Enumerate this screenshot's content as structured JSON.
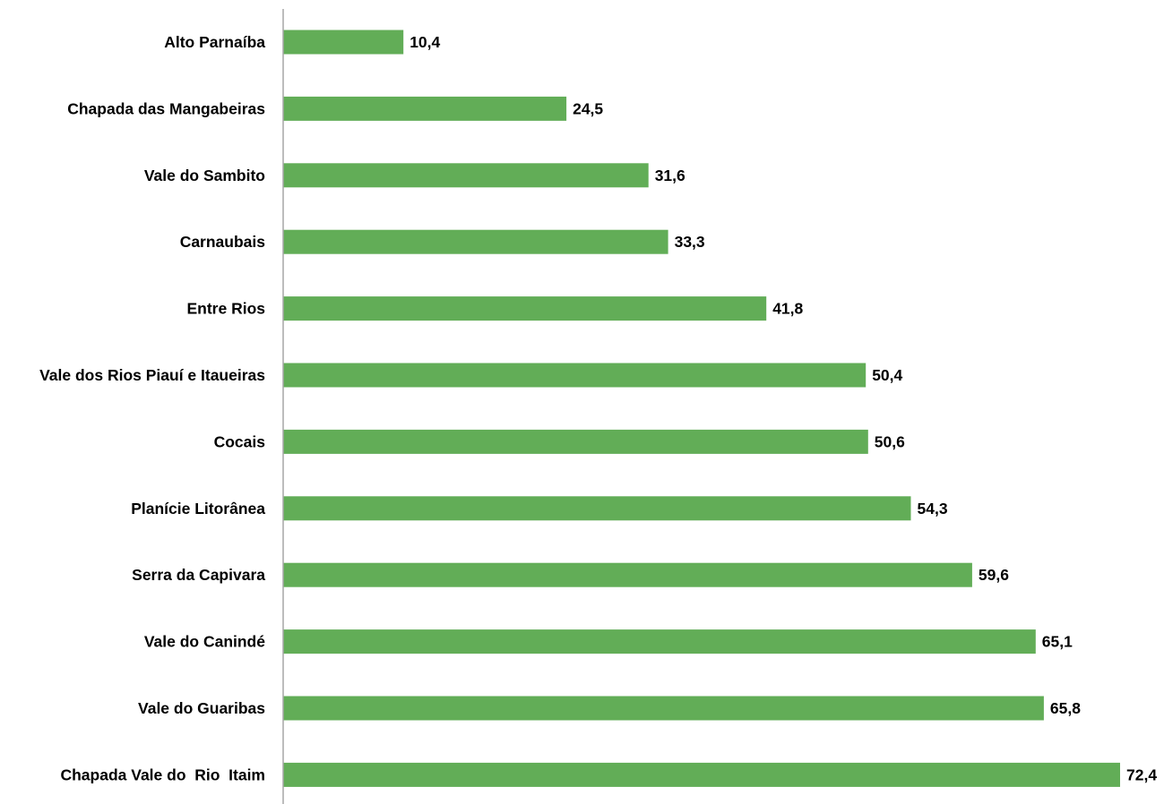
{
  "chart_data": {
    "type": "bar",
    "orientation": "horizontal",
    "categories": [
      "Alto Parnaíba",
      "Chapada das Mangabeiras",
      "Vale do Sambito",
      "Carnaubais",
      "Entre Rios",
      "Vale dos Rios Piauí e Itaueiras",
      "Cocais",
      "Planície Litorânea",
      "Serra da Capivara",
      "Vale do Canindé",
      "Vale do Guaribas",
      "Chapada Vale do  Rio  Itaim"
    ],
    "values": [
      10.4,
      24.5,
      31.6,
      33.3,
      41.8,
      50.4,
      50.6,
      54.3,
      59.6,
      65.1,
      65.8,
      72.4
    ],
    "value_labels": [
      "10,4",
      "24,5",
      "31,6",
      "33,3",
      "41,8",
      "50,4",
      "50,6",
      "54,3",
      "59,6",
      "65,1",
      "65,8",
      "72,4"
    ],
    "xlim": [
      0,
      72.4
    ],
    "grid": false,
    "legend": "none",
    "colors": {
      "bar": "#62AD57",
      "axis": "#A6A6A6",
      "text": "#000000"
    }
  }
}
